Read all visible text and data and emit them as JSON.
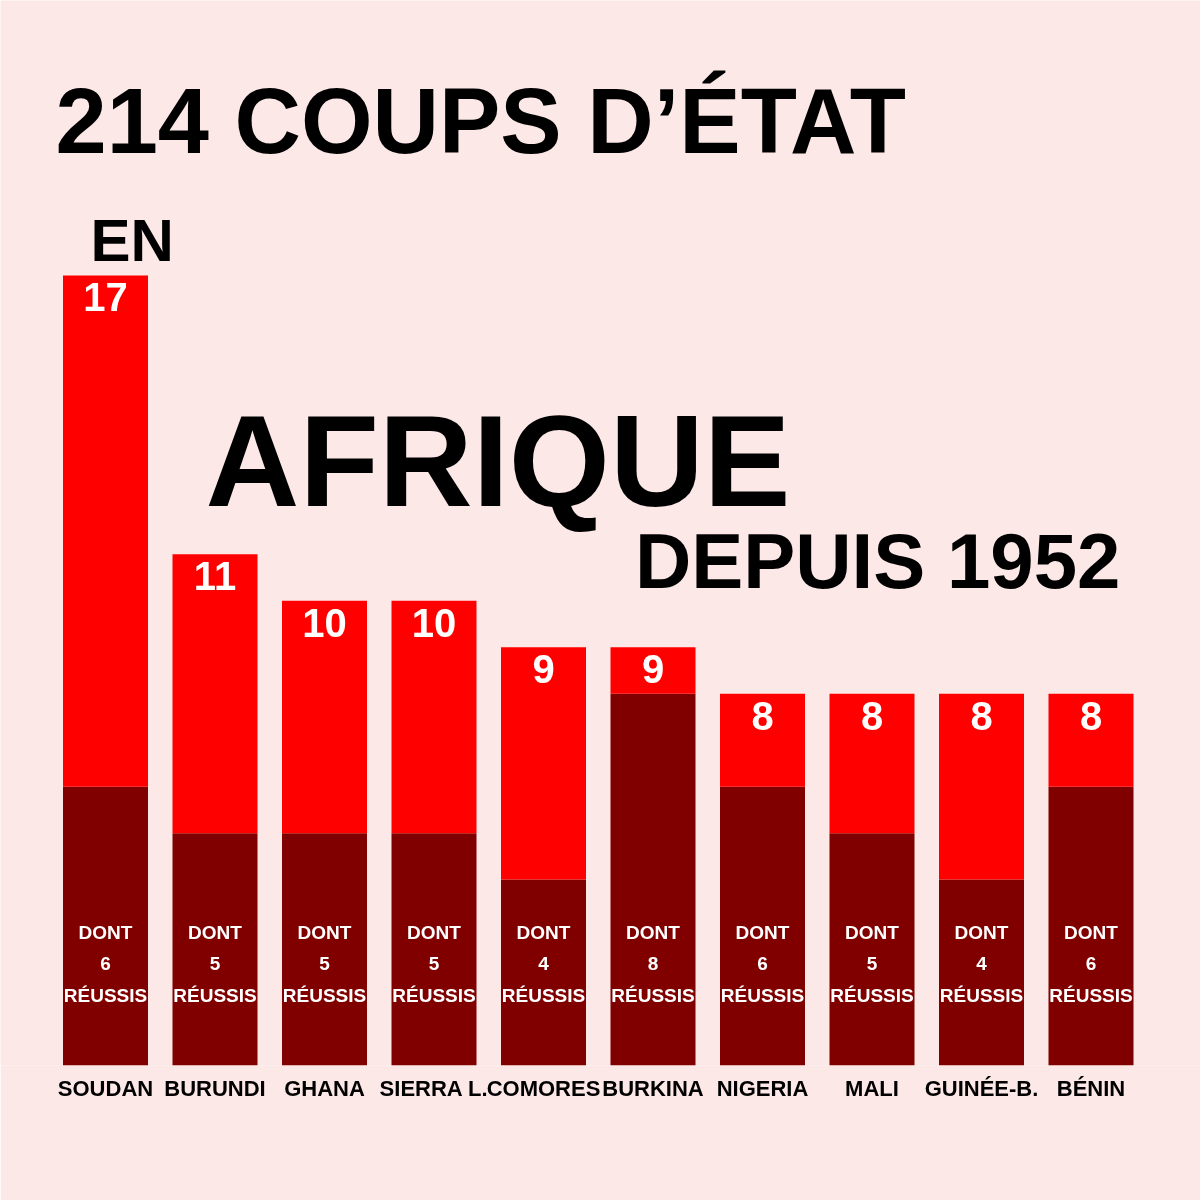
{
  "chart_data": {
    "type": "bar",
    "title": "214 COUPS D’ÉTAT",
    "subtitle": "EN AFRIQUE DEPUIS 1952",
    "categories": [
      "SOUDAN",
      "BURUNDI",
      "GHANA",
      "SIERRA L.",
      "COMORES",
      "BURKINA",
      "NIGERIA",
      "MALI",
      "GUINÉE-B.",
      "BÉNIN"
    ],
    "stacked": true,
    "grid": false,
    "series": [
      {
        "color": "#800000",
        "values": [
          6,
          5,
          5,
          5,
          4,
          8,
          6,
          5,
          4,
          6
        ],
        "value_labels": [
          "DONT 6 RÉUSSIS",
          "DONT 5 RÉUSSIS",
          "DONT 5 RÉUSSIS",
          "DONT 5 RÉUSSIS",
          "DONT 4 RÉUSSIS",
          "DONT 8 RÉUSSIS",
          "DONT 6 RÉUSSIS",
          "DONT 5 RÉUSSIS",
          "DONT 4 RÉUSSIS",
          "DONT 6 RÉUSSIS"
        ]
      },
      {
        "color": "#ff0000",
        "values": [
          11,
          6,
          5,
          5,
          5,
          1,
          2,
          3,
          4,
          2
        ]
      }
    ],
    "totals": [
      "17",
      "11",
      "10",
      "10",
      "9",
      "9",
      "8",
      "8",
      "8",
      "8"
    ]
  }
}
